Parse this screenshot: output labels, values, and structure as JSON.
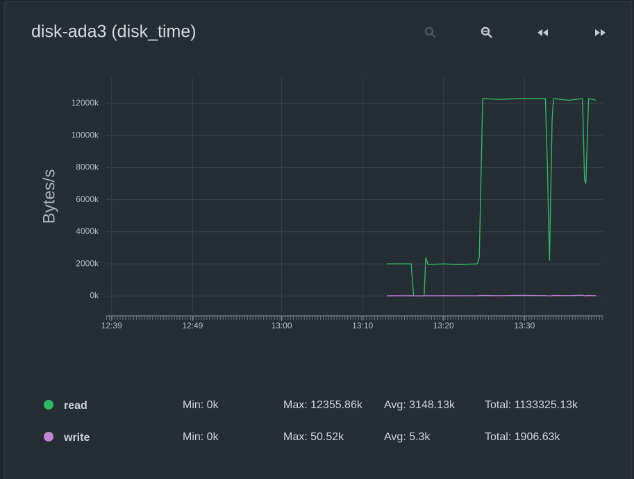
{
  "chart_data": {
    "type": "line",
    "title": "disk-ada3 (disk_time)",
    "y_label": "Bytes/s",
    "xlim": [
      "12:38:20",
      "13:39:40"
    ],
    "xticks": [
      "12:39",
      "12:49",
      "13:00",
      "13:10",
      "13:20",
      "13:30"
    ],
    "ylim": [
      -1240,
      13600
    ],
    "yticks": [
      {
        "value": 0,
        "label": "0k"
      },
      {
        "value": 2000,
        "label": "2000k"
      },
      {
        "value": 4000,
        "label": "4000k"
      },
      {
        "value": 6000,
        "label": "6000k"
      },
      {
        "value": 8000,
        "label": "8000k"
      },
      {
        "value": 10000,
        "label": "10000k"
      },
      {
        "value": 12000,
        "label": "12000k"
      }
    ],
    "grid": true,
    "x": [
      "13:13:00",
      "13:16:00",
      "13:16:18",
      "13:17:36",
      "13:17:48",
      "13:18:06",
      "13:20:00",
      "13:21:45",
      "13:24:10",
      "13:24:25",
      "13:24:50",
      "13:26:55",
      "13:29:30",
      "13:32:35",
      "13:32:50",
      "13:33:05",
      "13:33:25",
      "13:33:35",
      "13:35:30",
      "13:37:10",
      "13:37:25",
      "13:37:35",
      "13:37:55",
      "13:38:50"
    ],
    "series": [
      {
        "name": "read",
        "color": "#2fb860",
        "values": [
          2000,
          2000,
          0,
          0,
          2400,
          1950,
          2000,
          1950,
          2000,
          2400,
          12300,
          12250,
          12300,
          12300,
          8000,
          2200,
          11000,
          12300,
          12200,
          12300,
          7200,
          7000,
          12300,
          12200
        ],
        "stats": [
          "Min: 0k",
          "Max: 12355.86k",
          "Avg: 3148.13k",
          "Total: 1133325.13k"
        ]
      },
      {
        "name": "write",
        "color": "#c384d6",
        "values": [
          10,
          15,
          5,
          5,
          20,
          10,
          15,
          10,
          20,
          25,
          30,
          20,
          40,
          25,
          10,
          5,
          20,
          30,
          25,
          50,
          20,
          15,
          30,
          20
        ],
        "stats": [
          "Min: 0k",
          "Max: 50.52k",
          "Avg: 5.3k",
          "Total: 1906.63k"
        ]
      }
    ]
  }
}
